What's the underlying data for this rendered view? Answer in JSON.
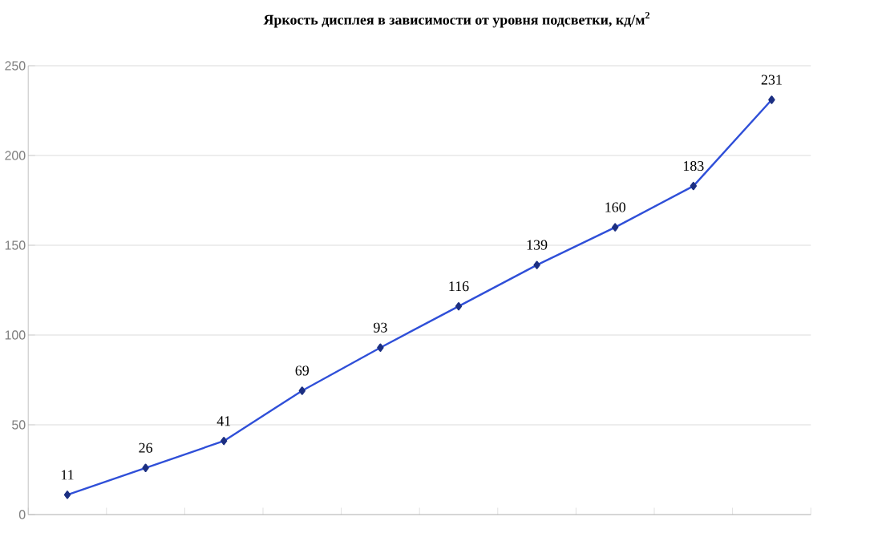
{
  "chart_data": {
    "type": "line",
    "title": "Яркость дисплея в зависимости от уровня подсветки, кд/м$^{2}$",
    "categories": [
      null,
      null,
      null,
      null,
      null,
      null,
      null,
      null,
      null,
      null
    ],
    "values": [
      11,
      26,
      41,
      69,
      93,
      116,
      139,
      160,
      183,
      231
    ],
    "color": "#2f4fd8",
    "marker": "diamond",
    "line_style": "solid",
    "data_labels": true,
    "grid": "y",
    "ylim": [
      0,
      250
    ],
    "yticks": [
      0,
      50,
      100,
      150,
      200,
      250
    ]
  }
}
